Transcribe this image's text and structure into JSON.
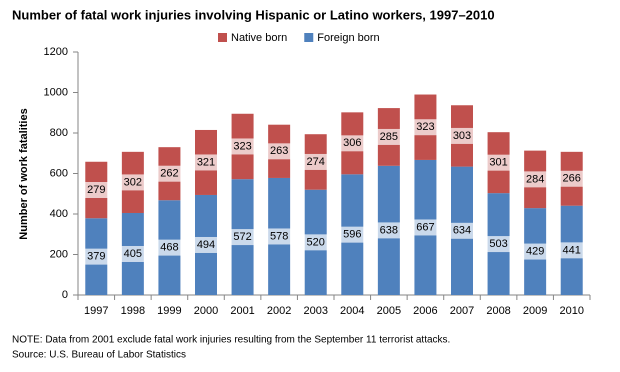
{
  "chart_data": {
    "type": "stacked_bar",
    "title": "Number of fatal work injuries involving Hispanic or Latino workers, 1997–2010",
    "y_label": "Number of work fatalities",
    "categories": [
      "1997",
      "1998",
      "1999",
      "2000",
      "2001",
      "2002",
      "2003",
      "2004",
      "2005",
      "2006",
      "2007",
      "2008",
      "2009",
      "2010"
    ],
    "series": [
      {
        "name": "Foreign born",
        "color": "#4f81bd",
        "values": [
          379,
          405,
          468,
          494,
          572,
          578,
          520,
          596,
          638,
          667,
          634,
          503,
          429,
          441
        ]
      },
      {
        "name": "Native born",
        "color": "#c0504d",
        "values": [
          279,
          302,
          262,
          321,
          323,
          263,
          274,
          306,
          285,
          323,
          303,
          301,
          284,
          266
        ]
      }
    ],
    "ylim": [
      0,
      1200
    ],
    "yticks": [
      0,
      200,
      400,
      600,
      800,
      1000,
      1200
    ],
    "grid": false,
    "notes": [
      "NOTE: Data from 2001 exclude fatal work injuries resulting from the September 11 terrorist attacks.",
      "Source: U.S. Bureau of Labor Statistics"
    ]
  }
}
